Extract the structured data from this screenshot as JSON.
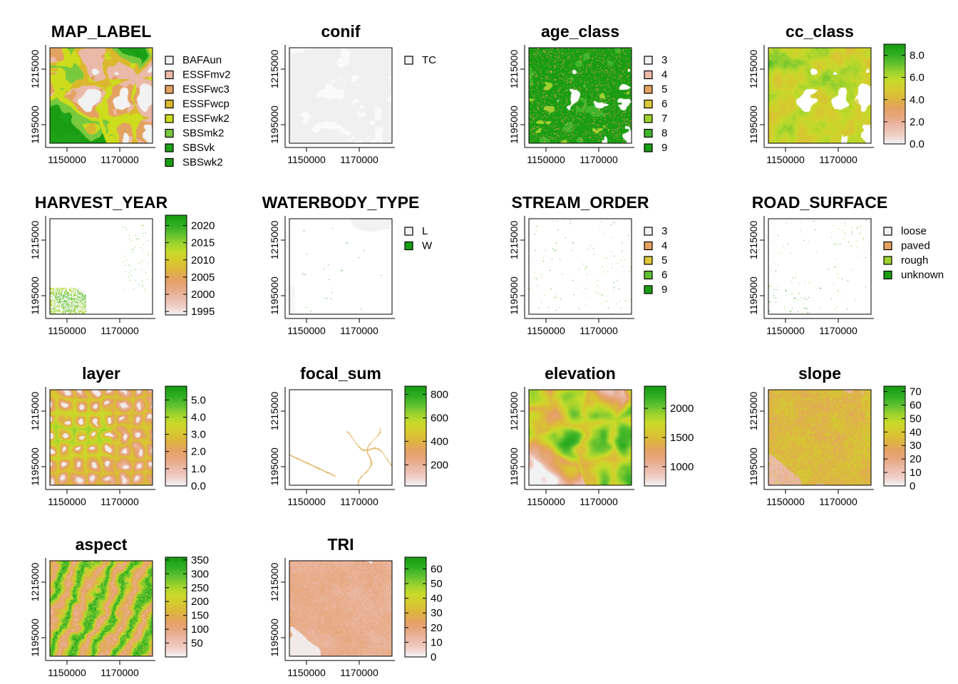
{
  "chart_data": [
    {
      "type": "heatmap",
      "title": "MAP_LABEL",
      "legend_kind": "categorical",
      "categories": [
        "BAFAun",
        "ESSFmv2",
        "ESSFwc3",
        "ESSFwcp",
        "ESSFwk2",
        "SBSmk2",
        "SBSvk",
        "SBSwk2"
      ],
      "colors": [
        "#F2F2F2",
        "#EBB9A7",
        "#E4A261",
        "#DBB72E",
        "#CDDC1C",
        "#78C93D",
        "#1DA218",
        "#1A9D12"
      ],
      "xticks": [
        "1150000",
        "1170000"
      ],
      "yticks": [
        "1195000",
        "1215000"
      ]
    },
    {
      "type": "heatmap",
      "title": "conif",
      "legend_kind": "categorical",
      "categories": [
        "TC"
      ],
      "colors": [
        "#F2F2F2"
      ],
      "xticks": [
        "1150000",
        "1170000"
      ],
      "yticks": [
        "1195000",
        "1215000"
      ]
    },
    {
      "type": "heatmap",
      "title": "age_class",
      "legend_kind": "categorical",
      "categories": [
        "3",
        "4",
        "5",
        "6",
        "7",
        "8",
        "9"
      ],
      "colors": [
        "#F2F2F2",
        "#EBB9A7",
        "#E4A261",
        "#DDC93A",
        "#9CD22E",
        "#3FB52A",
        "#1A9D12"
      ],
      "xticks": [
        "1150000",
        "1170000"
      ],
      "yticks": [
        "1195000",
        "1215000"
      ]
    },
    {
      "type": "heatmap",
      "title": "cc_class",
      "legend_kind": "continuous",
      "ticks": [
        "0.0",
        "2.0",
        "4.0",
        "6.0",
        "8.0"
      ],
      "range": [
        0,
        9
      ],
      "xticks": [
        "1150000",
        "1170000"
      ],
      "yticks": [
        "1195000",
        "1215000"
      ]
    },
    {
      "type": "heatmap",
      "title": "HARVEST_YEAR",
      "legend_kind": "continuous",
      "ticks": [
        "1995",
        "2000",
        "2005",
        "2010",
        "2015",
        "2020"
      ],
      "range": [
        1994,
        2023
      ],
      "xticks": [
        "1150000",
        "1170000"
      ],
      "yticks": [
        "1195000",
        "1215000"
      ]
    },
    {
      "type": "heatmap",
      "title": "WATERBODY_TYPE",
      "legend_kind": "categorical",
      "categories": [
        "L",
        "W"
      ],
      "colors": [
        "#F2F2F2",
        "#1A9D12"
      ],
      "xticks": [
        "1150000",
        "1170000"
      ],
      "yticks": [
        "1195000",
        "1215000"
      ]
    },
    {
      "type": "heatmap",
      "title": "STREAM_ORDER",
      "legend_kind": "categorical",
      "categories": [
        "3",
        "4",
        "5",
        "6",
        "9"
      ],
      "colors": [
        "#F2F2F2",
        "#E4A261",
        "#DDC93A",
        "#5FC030",
        "#1A9D12"
      ],
      "xticks": [
        "1150000",
        "1170000"
      ],
      "yticks": [
        "1195000",
        "1215000"
      ]
    },
    {
      "type": "heatmap",
      "title": "ROAD_SURFACE",
      "legend_kind": "categorical",
      "categories": [
        "loose",
        "paved",
        "rough",
        "unknown"
      ],
      "colors": [
        "#F2F2F2",
        "#E4A261",
        "#9CD22E",
        "#1A9D12"
      ],
      "xticks": [
        "1150000",
        "1170000"
      ],
      "yticks": [
        "1195000",
        "1215000"
      ]
    },
    {
      "type": "heatmap",
      "title": "layer",
      "legend_kind": "continuous",
      "ticks": [
        "0.0",
        "1.0",
        "2.0",
        "3.0",
        "4.0",
        "5.0"
      ],
      "range": [
        0,
        5.8
      ],
      "xticks": [
        "1150000",
        "1170000"
      ],
      "yticks": [
        "1195000",
        "1215000"
      ]
    },
    {
      "type": "heatmap",
      "title": "focal_sum",
      "legend_kind": "continuous",
      "ticks": [
        "200",
        "400",
        "600",
        "800"
      ],
      "range": [
        20,
        870
      ],
      "xticks": [
        "1150000",
        "1170000"
      ],
      "yticks": [
        "1195000",
        "1215000"
      ]
    },
    {
      "type": "heatmap",
      "title": "elevation",
      "legend_kind": "continuous",
      "ticks": [
        "1000",
        "1500",
        "2000"
      ],
      "range": [
        670,
        2380
      ],
      "xticks": [
        "1150000",
        "1170000"
      ],
      "yticks": [
        "1195000",
        "1215000"
      ]
    },
    {
      "type": "heatmap",
      "title": "slope",
      "legend_kind": "continuous",
      "ticks": [
        "0",
        "10",
        "20",
        "30",
        "40",
        "50",
        "60",
        "70"
      ],
      "range": [
        0,
        74
      ],
      "xticks": [
        "1150000",
        "1170000"
      ],
      "yticks": [
        "1195000",
        "1215000"
      ]
    },
    {
      "type": "heatmap",
      "title": "aspect",
      "legend_kind": "continuous",
      "ticks": [
        "50",
        "100",
        "150",
        "200",
        "250",
        "300",
        "350"
      ],
      "range": [
        0,
        360
      ],
      "xticks": [
        "1150000",
        "1170000"
      ],
      "yticks": [
        "1195000",
        "1215000"
      ]
    },
    {
      "type": "heatmap",
      "title": "TRI",
      "legend_kind": "continuous",
      "ticks": [
        "0",
        "10",
        "20",
        "30",
        "40",
        "50",
        "60"
      ],
      "range": [
        0,
        68
      ],
      "xticks": [
        "1150000",
        "1170000"
      ],
      "yticks": [
        "1195000",
        "1215000"
      ]
    }
  ]
}
